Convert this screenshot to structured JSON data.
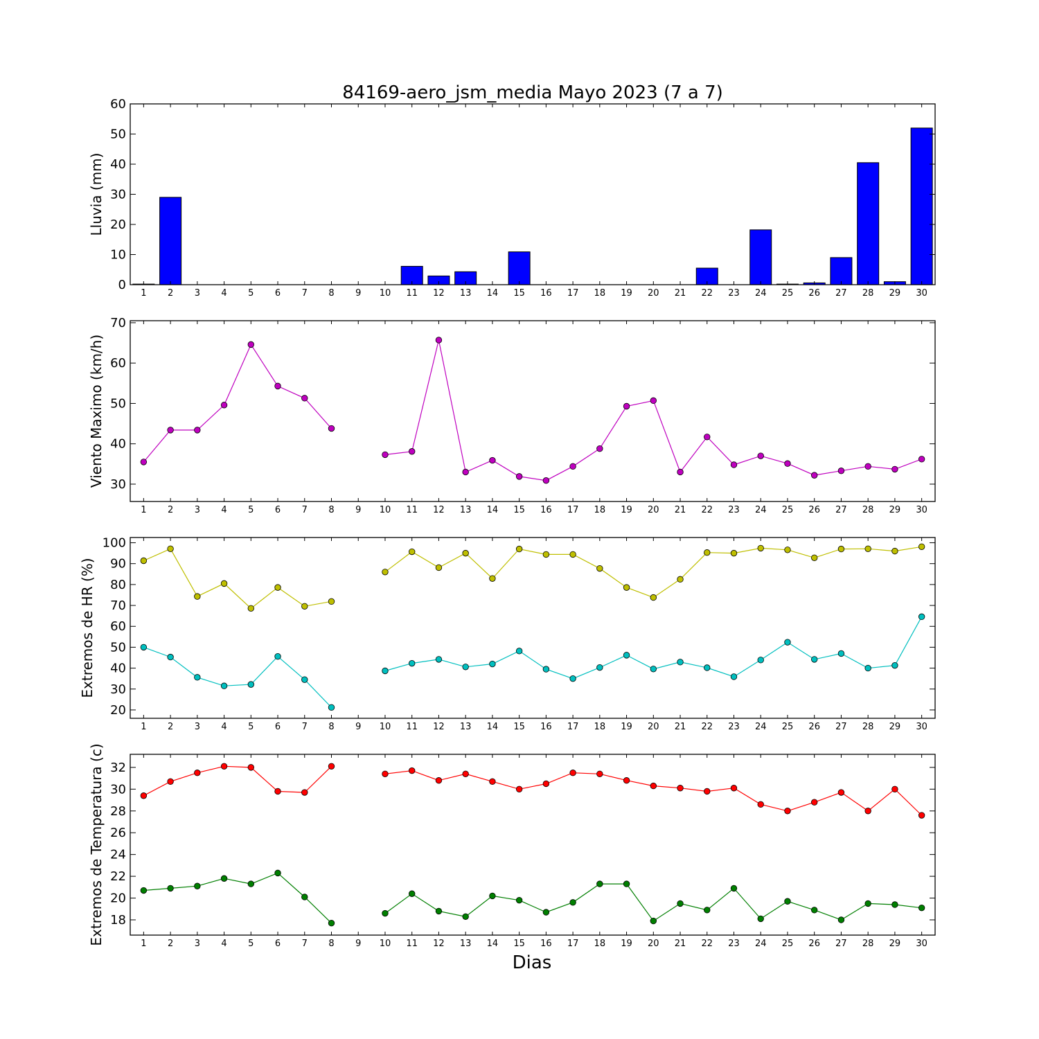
{
  "figure": {
    "title": "84169-aero_jsm_media Mayo 2023  (7 a 7)",
    "xlabel": "Dias"
  },
  "chart_data": [
    {
      "type": "bar",
      "ylabel": "Lluvia (mm)",
      "ylim": [
        0,
        60
      ],
      "yticks": [
        0,
        10,
        20,
        30,
        40,
        50,
        60
      ],
      "xlim": [
        0.5,
        30.5
      ],
      "xticks": [
        1,
        2,
        3,
        4,
        5,
        6,
        7,
        8,
        9,
        10,
        11,
        12,
        13,
        14,
        15,
        16,
        17,
        18,
        19,
        20,
        21,
        22,
        23,
        24,
        25,
        26,
        27,
        28,
        29,
        30
      ],
      "x": [
        1,
        2,
        3,
        4,
        5,
        6,
        7,
        8,
        9,
        10,
        11,
        12,
        13,
        14,
        15,
        16,
        17,
        18,
        19,
        20,
        21,
        22,
        23,
        24,
        25,
        26,
        27,
        28,
        29,
        30
      ],
      "series": [
        {
          "values": [
            0.2,
            29.0,
            0,
            0,
            0,
            0,
            0,
            0,
            0,
            0,
            6.1,
            2.9,
            4.3,
            0,
            10.9,
            0,
            0,
            0,
            0,
            0,
            0,
            5.5,
            0,
            18.2,
            0.2,
            0.6,
            9.0,
            40.5,
            1.0,
            52.0
          ],
          "color": "#0000ff"
        }
      ]
    },
    {
      "type": "line",
      "ylabel": "Viento Maximo (km/h)",
      "ylim": [
        25.7,
        70.5
      ],
      "yticks": [
        30,
        40,
        50,
        60,
        70
      ],
      "xlim": [
        0.5,
        30.5
      ],
      "xticks": [
        1,
        2,
        3,
        4,
        5,
        6,
        7,
        8,
        9,
        10,
        11,
        12,
        13,
        14,
        15,
        16,
        17,
        18,
        19,
        20,
        21,
        22,
        23,
        24,
        25,
        26,
        27,
        28,
        29,
        30
      ],
      "x": [
        1,
        2,
        3,
        4,
        5,
        6,
        7,
        8,
        9,
        10,
        11,
        12,
        13,
        14,
        15,
        16,
        17,
        18,
        19,
        20,
        21,
        22,
        23,
        24,
        25,
        26,
        27,
        28,
        29,
        30
      ],
      "series": [
        {
          "values": [
            35.5,
            43.4,
            43.4,
            49.6,
            64.6,
            54.3,
            51.3,
            43.8,
            null,
            37.3,
            38.1,
            65.7,
            33.0,
            35.9,
            31.9,
            30.9,
            34.4,
            38.8,
            49.3,
            50.7,
            33.0,
            41.7,
            34.8,
            37.0,
            35.1,
            32.2,
            33.3,
            34.4,
            33.7,
            36.2
          ],
          "color": "#bf00bf"
        }
      ]
    },
    {
      "type": "line",
      "ylabel": "Extremos de HR (%)",
      "ylim": [
        16,
        102.5
      ],
      "yticks": [
        20,
        30,
        40,
        50,
        60,
        70,
        80,
        90,
        100
      ],
      "xlim": [
        0.5,
        30.5
      ],
      "xticks": [
        1,
        2,
        3,
        4,
        5,
        6,
        7,
        8,
        9,
        10,
        11,
        12,
        13,
        14,
        15,
        16,
        17,
        18,
        19,
        20,
        21,
        22,
        23,
        24,
        25,
        26,
        27,
        28,
        29,
        30
      ],
      "x": [
        1,
        2,
        3,
        4,
        5,
        6,
        7,
        8,
        9,
        10,
        11,
        12,
        13,
        14,
        15,
        16,
        17,
        18,
        19,
        20,
        21,
        22,
        23,
        24,
        25,
        26,
        27,
        28,
        29,
        30
      ],
      "series": [
        {
          "values": [
            91.4,
            97.1,
            74.3,
            80.5,
            68.6,
            78.6,
            69.6,
            71.9,
            null,
            86.0,
            95.7,
            88.1,
            95.0,
            82.9,
            97.0,
            94.4,
            94.4,
            87.7,
            78.6,
            73.8,
            82.5,
            95.3,
            95.0,
            97.4,
            96.6,
            92.8,
            97.0,
            97.1,
            96.0,
            98.1
          ],
          "color": "#bfbf00"
        },
        {
          "values": [
            50.0,
            45.3,
            35.6,
            31.5,
            32.2,
            45.6,
            34.5,
            21.2,
            null,
            38.7,
            42.3,
            44.2,
            40.6,
            42.0,
            48.2,
            39.5,
            35.0,
            40.3,
            46.2,
            39.6,
            42.9,
            40.2,
            35.9,
            43.9,
            52.4,
            44.2,
            47.0,
            40.0,
            41.3,
            64.6
          ],
          "color": "#00bfbf"
        }
      ]
    },
    {
      "type": "line",
      "ylabel": "Extremos de Temperatura (c)",
      "ylim": [
        16.6,
        33.2
      ],
      "yticks": [
        18,
        20,
        22,
        24,
        26,
        28,
        30,
        32
      ],
      "xlim": [
        0.5,
        30.5
      ],
      "xticks": [
        1,
        2,
        3,
        4,
        5,
        6,
        7,
        8,
        9,
        10,
        11,
        12,
        13,
        14,
        15,
        16,
        17,
        18,
        19,
        20,
        21,
        22,
        23,
        24,
        25,
        26,
        27,
        28,
        29,
        30
      ],
      "x": [
        1,
        2,
        3,
        4,
        5,
        6,
        7,
        8,
        9,
        10,
        11,
        12,
        13,
        14,
        15,
        16,
        17,
        18,
        19,
        20,
        21,
        22,
        23,
        24,
        25,
        26,
        27,
        28,
        29,
        30
      ],
      "series": [
        {
          "values": [
            29.4,
            30.7,
            31.5,
            32.1,
            32.0,
            29.8,
            29.7,
            32.1,
            null,
            31.4,
            31.7,
            30.8,
            31.4,
            30.7,
            30.0,
            30.5,
            31.5,
            31.4,
            30.8,
            30.3,
            30.1,
            29.8,
            30.1,
            28.6,
            28.0,
            28.8,
            29.7,
            28.0,
            30.0,
            27.6
          ],
          "color": "#ff0000"
        },
        {
          "values": [
            20.7,
            20.9,
            21.1,
            21.8,
            21.3,
            22.3,
            20.1,
            17.7,
            null,
            18.6,
            20.4,
            18.8,
            18.3,
            20.2,
            19.8,
            18.7,
            19.6,
            21.3,
            21.3,
            17.9,
            19.5,
            18.9,
            20.9,
            18.1,
            19.7,
            18.9,
            18.0,
            19.5,
            19.4,
            19.1
          ],
          "color": "#007f00"
        }
      ]
    }
  ]
}
